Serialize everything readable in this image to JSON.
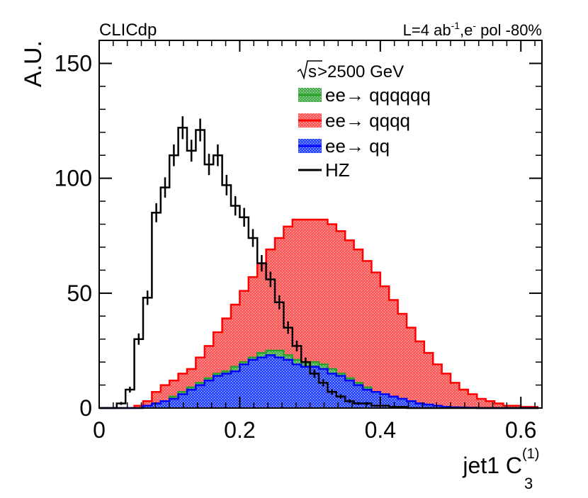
{
  "header": {
    "experiment": "CLICdp",
    "luminosity": "L=4 ab",
    "lumi_exp": "-1",
    "beam_e": ",e",
    "beam_sup": "-",
    "polarization": " pol -80%"
  },
  "colors": {
    "qqqqqq": "#2ca02c",
    "qqqq": "#ff0000",
    "qq": "#0000ff",
    "hz": "#000000"
  },
  "chart_data": {
    "type": "histogram",
    "title": "",
    "xlabel": "jet1 C",
    "xlabel_sub": "3",
    "xlabel_sup": "(1)",
    "ylabel": "A.U.",
    "xlim": [
      0,
      0.63
    ],
    "ylim": [
      0,
      160
    ],
    "xticks": [
      0,
      0.2,
      0.4,
      0.6
    ],
    "xtick_labels": [
      "0",
      "0.2",
      "0.4",
      "0.6"
    ],
    "yticks": [
      0,
      50,
      100,
      150
    ],
    "ytick_labels": [
      "0",
      "50",
      "100",
      "150"
    ],
    "legend": {
      "header_root": "s",
      "header_rest": ">2500 GeV",
      "entries": [
        {
          "key": "qqqqqq",
          "label": "ee→ qqqqqq"
        },
        {
          "key": "qqqq",
          "label": "ee→ qqqq"
        },
        {
          "key": "qq",
          "label": "ee→ qq"
        },
        {
          "key": "hz",
          "label": "HZ"
        }
      ]
    },
    "bin_edges": [
      0,
      0.0125,
      0.025,
      0.0375,
      0.05,
      0.0625,
      0.075,
      0.0875,
      0.1,
      0.1125,
      0.125,
      0.1375,
      0.15,
      0.1625,
      0.175,
      0.1875,
      0.2,
      0.2125,
      0.225,
      0.2375,
      0.25,
      0.2625,
      0.275,
      0.2875,
      0.3,
      0.3125,
      0.325,
      0.3375,
      0.35,
      0.3625,
      0.375,
      0.3875,
      0.4,
      0.4125,
      0.425,
      0.4375,
      0.45,
      0.4625,
      0.475,
      0.4875,
      0.5,
      0.5125,
      0.525,
      0.5375,
      0.55,
      0.5625,
      0.575,
      0.5875,
      0.6,
      0.6125,
      0.625
    ],
    "series": [
      {
        "name": "ee→ qqqq",
        "key": "qqqq",
        "kind": "filled",
        "values": [
          0,
          0,
          0,
          0,
          1,
          3,
          7,
          10,
          12,
          15,
          17,
          22,
          27,
          33,
          39,
          45,
          51,
          57,
          63,
          69,
          74,
          79,
          82,
          82,
          82,
          82,
          80,
          77,
          73,
          69,
          64,
          59,
          53,
          47,
          41,
          35,
          29,
          24,
          19,
          15,
          11,
          8,
          6,
          4,
          3,
          2,
          1,
          1,
          0.5,
          0.5
        ]
      },
      {
        "name": "ee→ qqqqqq",
        "key": "qqqqqq",
        "kind": "filled",
        "values": [
          0,
          0,
          0,
          0,
          0,
          1,
          2,
          3,
          5,
          7,
          9,
          11,
          13,
          15,
          16,
          18,
          20,
          22,
          24,
          25,
          25,
          23,
          21,
          20,
          20,
          19,
          17,
          15,
          13,
          11,
          9,
          7,
          6,
          5,
          4,
          3,
          2,
          1.5,
          1,
          0.5,
          0.3,
          0.2,
          0.1,
          0,
          0,
          0,
          0,
          0,
          0,
          0
        ]
      },
      {
        "name": "ee→ qq",
        "key": "qq",
        "kind": "filled",
        "values": [
          0,
          0,
          0,
          0,
          0,
          1,
          2,
          3,
          4,
          6,
          8,
          10,
          12,
          14,
          15,
          16,
          19,
          21,
          22,
          23,
          22,
          21,
          19,
          18,
          18,
          17,
          15,
          14,
          12,
          10,
          8,
          7,
          6,
          5,
          4,
          3,
          2,
          1.5,
          1,
          0.5,
          0.3,
          0.2,
          0.1,
          0,
          0,
          0,
          0,
          0,
          0,
          0
        ]
      },
      {
        "name": "HZ",
        "key": "hz",
        "kind": "line",
        "values": [
          0,
          0,
          2,
          8,
          30,
          48,
          85,
          96,
          110,
          122,
          112,
          121,
          106,
          110,
          97,
          88,
          83,
          74,
          63,
          56,
          46,
          35,
          27,
          20,
          15,
          11,
          7,
          5,
          3,
          2,
          2,
          1,
          1,
          0.5,
          0.5,
          0,
          0,
          0,
          0,
          0,
          0,
          0,
          0,
          0,
          0,
          0,
          0,
          0,
          0,
          0
        ]
      }
    ]
  }
}
